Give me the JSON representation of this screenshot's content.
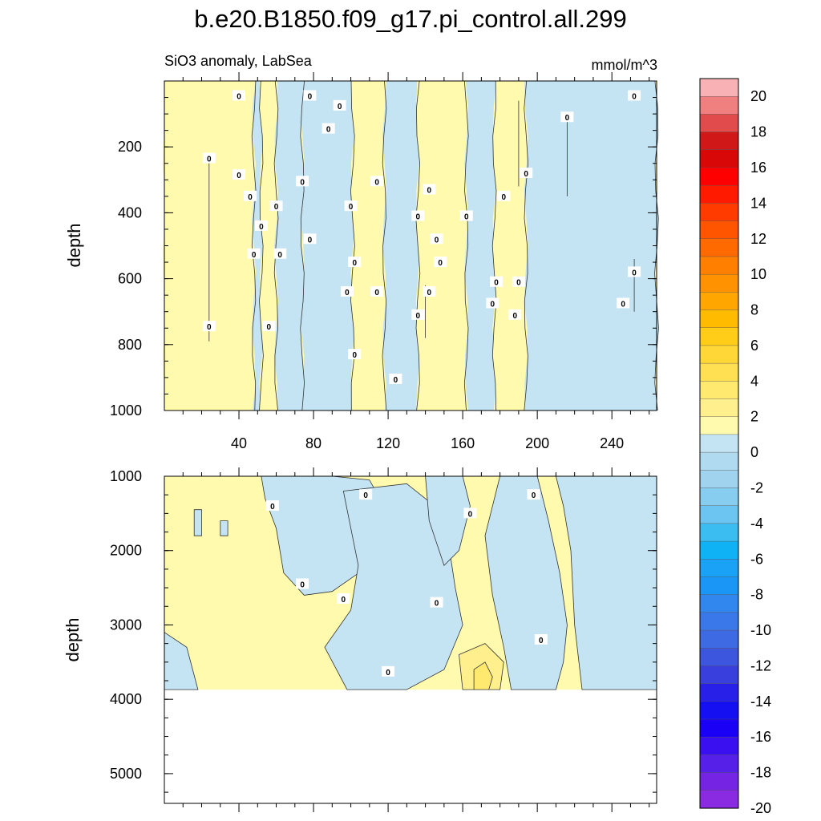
{
  "chart_data": {
    "type": "heatmap",
    "title": "b.e20.B1850.f09_g17.pi_control.all.299",
    "subtitle_left": "SiO3 anomaly, LabSea",
    "subtitle_right": "mmol/m^3",
    "xlabel": "",
    "ylabel": "depth",
    "x_ticks": [
      40,
      80,
      120,
      160,
      200,
      240
    ],
    "xlim": [
      0,
      264
    ],
    "panels": [
      {
        "name": "upper",
        "ylim": [
          0,
          1000
        ],
        "y_ticks": [
          200,
          400,
          600,
          800,
          1000
        ],
        "contour_label": "0",
        "bands": [
          {
            "x0": 0,
            "x1": 48,
            "sign": "positive"
          },
          {
            "x0": 48,
            "x1": 52,
            "sign": "negative"
          },
          {
            "x0": 52,
            "x1": 60,
            "sign": "positive"
          },
          {
            "x0": 60,
            "x1": 74,
            "sign": "negative"
          },
          {
            "x0": 74,
            "x1": 101,
            "sign": "negative"
          },
          {
            "x0": 101,
            "x1": 118,
            "sign": "positive"
          },
          {
            "x0": 118,
            "x1": 136,
            "sign": "negative"
          },
          {
            "x0": 136,
            "x1": 162,
            "sign": "positive"
          },
          {
            "x0": 162,
            "x1": 177,
            "sign": "negative"
          },
          {
            "x0": 177,
            "x1": 194,
            "sign": "positive"
          },
          {
            "x0": 194,
            "x1": 264,
            "sign": "negative"
          }
        ]
      },
      {
        "name": "lower",
        "ylim": [
          1000,
          5400
        ],
        "y_ticks": [
          1000,
          2000,
          3000,
          4000,
          5000
        ],
        "data_bottom": 3870,
        "contour_label": "0",
        "max_positive_anomaly": 3
      }
    ],
    "colorbar": {
      "levels": [
        20,
        18,
        16,
        14,
        12,
        10,
        8,
        6,
        4,
        2,
        0,
        -2,
        -4,
        -6,
        -8,
        -10,
        -12,
        -14,
        -16,
        -18,
        -20
      ],
      "labels": [
        "20",
        "18",
        "16",
        "14",
        "12",
        "10",
        "8",
        "6",
        "4",
        "2",
        "0",
        "-2",
        "-4",
        "-6",
        "-8",
        "-10",
        "-12",
        "-14",
        "-16",
        "-18",
        "-20"
      ],
      "colors": [
        "#f8b2b6",
        "#f08080",
        "#e24b4b",
        "#d01818",
        "#d80808",
        "#ff0000",
        "#ff1a00",
        "#ff3b00",
        "#ff5400",
        "#ff6a00",
        "#ff7f00",
        "#ff9200",
        "#ffa700",
        "#ffbb00",
        "#ffcc18",
        "#ffd736",
        "#ffe052",
        "#ffe96e",
        "#fff08d",
        "#fffaad",
        "#c4e4f4",
        "#b0daf0",
        "#9fd3ee",
        "#86cdef",
        "#6bc5f0",
        "#3bbdf2",
        "#0fb3f5",
        "#1aa2f6",
        "#1a96f6",
        "#3287ef",
        "#3a78ea",
        "#3e6ae4",
        "#3d56de",
        "#383fdc",
        "#2820e8",
        "#1510f2",
        "#1a00f5",
        "#3a10f0",
        "#5620e8",
        "#7424e2",
        "#8a2be2"
      ]
    },
    "positive_color": "#fffaad",
    "negative_color": "#c4e4f4",
    "strong_positive_colors": [
      "#fff08d",
      "#ffe96e"
    ]
  }
}
